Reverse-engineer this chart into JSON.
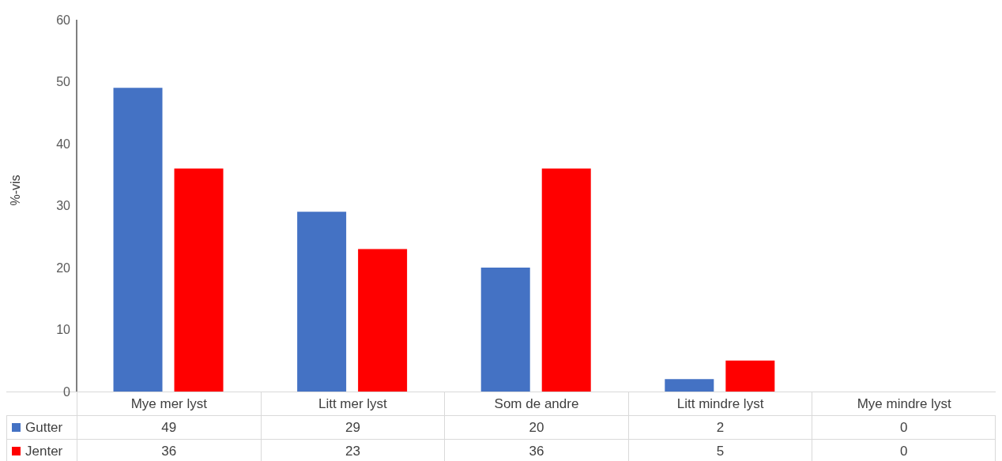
{
  "chart_data": {
    "type": "bar",
    "ylabel": "%-vis",
    "categories": [
      "Mye mer lyst",
      "Litt mer lyst",
      "Som de andre",
      "Litt mindre lyst",
      "Mye mindre lyst"
    ],
    "series": [
      {
        "name": "Gutter",
        "color": "#4472c4",
        "values": [
          49,
          29,
          20,
          2,
          0
        ]
      },
      {
        "name": "Jenter",
        "color": "#ff0000",
        "values": [
          36,
          23,
          36,
          5,
          0
        ]
      }
    ],
    "ylim": [
      0,
      60
    ],
    "yticks": [
      0,
      10,
      20,
      30,
      40,
      50,
      60
    ],
    "grid": false,
    "legend": "bottom",
    "data_labels": true
  }
}
